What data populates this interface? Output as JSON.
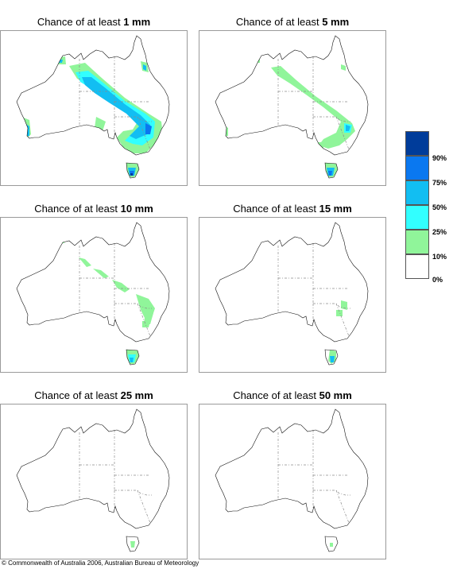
{
  "panels": [
    {
      "prefix": "Chance of at least ",
      "amount": "1 mm"
    },
    {
      "prefix": "Chance of at least ",
      "amount": "5 mm"
    },
    {
      "prefix": "Chance of at least ",
      "amount": "10 mm"
    },
    {
      "prefix": "Chance of at least ",
      "amount": "15 mm"
    },
    {
      "prefix": "Chance of at least ",
      "amount": "25 mm"
    },
    {
      "prefix": "Chance of at least ",
      "amount": "50 mm"
    }
  ],
  "legend": {
    "labels": [
      "90%",
      "75%",
      "50%",
      "25%",
      "10%",
      "0%"
    ],
    "colors": [
      "#003c9a",
      "#0a78f0",
      "#12bef2",
      "#32ffff",
      "#90f59a",
      "#ffffff"
    ]
  },
  "colors": {
    "coast": "#111111",
    "border": "#8a8a8a",
    "frame": "#9a9a9a"
  },
  "footer": {
    "copyright": "© Commonwealth of Australia 2006, Australian Bureau of Meteorology"
  }
}
